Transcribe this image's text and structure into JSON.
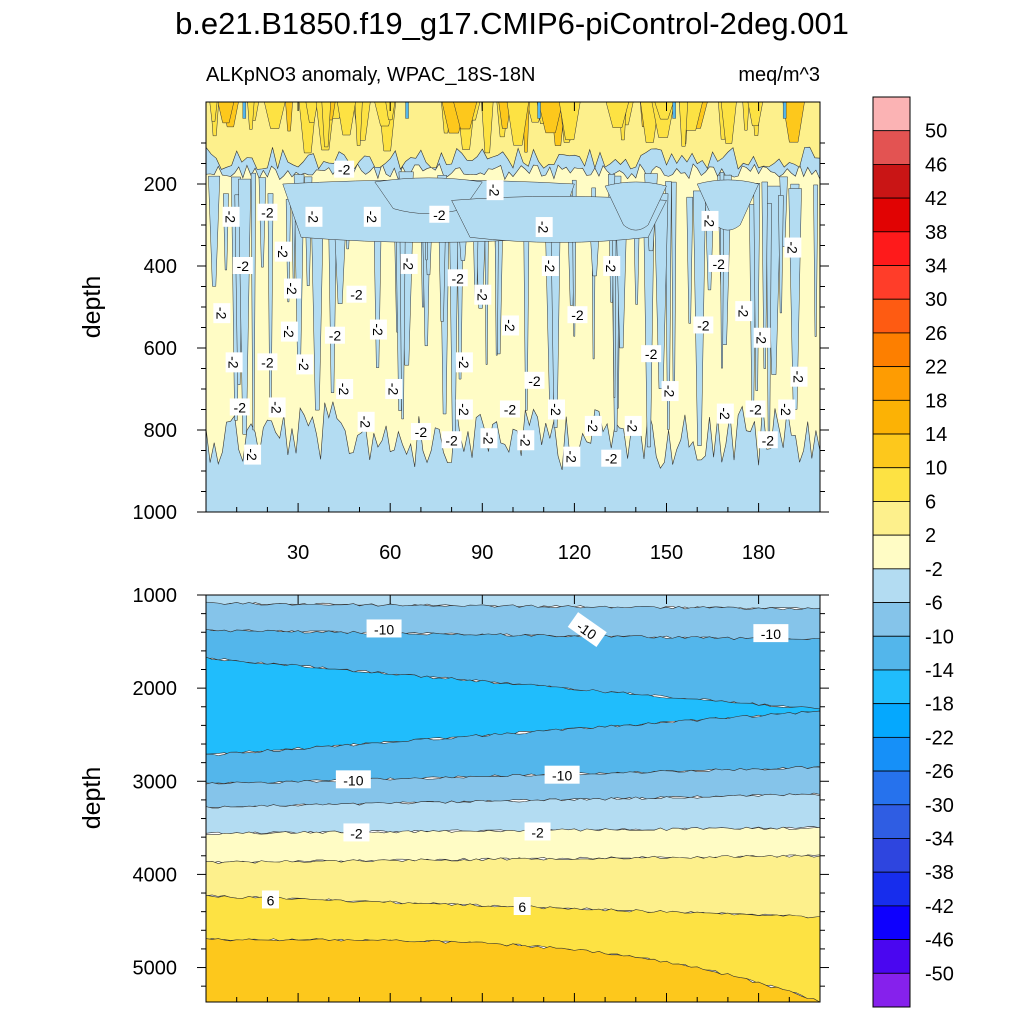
{
  "title": "b.e21.B1850.f19_g17.CMIP6-piControl-2deg.001",
  "subtitle_left": "ALKpNO3 anomaly, WPAC_18S-18N",
  "subtitle_right": "meq/m^3",
  "chart_data": [
    {
      "type": "heatmap",
      "panel": "upper",
      "ylabel": "depth",
      "xlabel": "",
      "xlim": [
        0,
        200
      ],
      "ylim": [
        1000,
        0
      ],
      "x_ticks": [
        30,
        60,
        90,
        120,
        150,
        180
      ],
      "y_ticks": [
        200,
        400,
        600,
        800,
        1000
      ],
      "regions": [
        {
          "label": "2 to 10",
          "depth_range": [
            0,
            150
          ]
        },
        {
          "label": "-2 to 2",
          "depth_range": [
            150,
            820
          ]
        },
        {
          "label": "-6 to -2",
          "depth_range": [
            820,
            1000
          ]
        }
      ],
      "contour_labels": [
        {
          "text": "-2",
          "x": 45,
          "y": 165
        },
        {
          "text": "-2",
          "x": 94,
          "y": 215
        },
        {
          "text": "-2",
          "x": 8,
          "y": 280
        },
        {
          "text": "-2",
          "x": 20,
          "y": 270
        },
        {
          "text": "-2",
          "x": 35,
          "y": 280
        },
        {
          "text": "-2",
          "x": 54,
          "y": 280
        },
        {
          "text": "-2",
          "x": 76,
          "y": 275
        },
        {
          "text": "-2",
          "x": 110,
          "y": 305
        },
        {
          "text": "-2",
          "x": 164,
          "y": 290
        },
        {
          "text": "-2",
          "x": 12,
          "y": 400
        },
        {
          "text": "-2",
          "x": 25,
          "y": 365
        },
        {
          "text": "-2",
          "x": 66,
          "y": 395
        },
        {
          "text": "-2",
          "x": 82,
          "y": 430
        },
        {
          "text": "-2",
          "x": 112,
          "y": 400
        },
        {
          "text": "-2",
          "x": 132,
          "y": 400
        },
        {
          "text": "-2",
          "x": 167,
          "y": 395
        },
        {
          "text": "-2",
          "x": 191,
          "y": 355
        },
        {
          "text": "-2",
          "x": 28,
          "y": 455
        },
        {
          "text": "-2",
          "x": 49,
          "y": 470
        },
        {
          "text": "-2",
          "x": 90,
          "y": 470
        },
        {
          "text": "-2",
          "x": 5,
          "y": 515
        },
        {
          "text": "-2",
          "x": 121,
          "y": 520
        },
        {
          "text": "-2",
          "x": 175,
          "y": 510
        },
        {
          "text": "-2",
          "x": 27,
          "y": 560
        },
        {
          "text": "-2",
          "x": 42,
          "y": 570
        },
        {
          "text": "-2",
          "x": 56,
          "y": 555
        },
        {
          "text": "-2",
          "x": 99,
          "y": 545
        },
        {
          "text": "-2",
          "x": 162,
          "y": 545
        },
        {
          "text": "-2",
          "x": 181,
          "y": 575
        },
        {
          "text": "-2",
          "x": 9,
          "y": 635
        },
        {
          "text": "-2",
          "x": 20,
          "y": 635
        },
        {
          "text": "-2",
          "x": 32,
          "y": 640
        },
        {
          "text": "-2",
          "x": 84,
          "y": 635
        },
        {
          "text": "-2",
          "x": 145,
          "y": 615
        },
        {
          "text": "-2",
          "x": 45,
          "y": 700
        },
        {
          "text": "-2",
          "x": 61,
          "y": 700
        },
        {
          "text": "-2",
          "x": 107,
          "y": 680
        },
        {
          "text": "-2",
          "x": 151,
          "y": 705
        },
        {
          "text": "-2",
          "x": 193,
          "y": 670
        },
        {
          "text": "-2",
          "x": 11,
          "y": 745
        },
        {
          "text": "-2",
          "x": 23,
          "y": 745
        },
        {
          "text": "-2",
          "x": 84,
          "y": 750
        },
        {
          "text": "-2",
          "x": 99,
          "y": 750
        },
        {
          "text": "-2",
          "x": 114,
          "y": 750
        },
        {
          "text": "-2",
          "x": 169,
          "y": 760
        },
        {
          "text": "-2",
          "x": 179,
          "y": 750
        },
        {
          "text": "-2",
          "x": 189,
          "y": 750
        },
        {
          "text": "-2",
          "x": 52,
          "y": 780
        },
        {
          "text": "-2",
          "x": 70,
          "y": 805
        },
        {
          "text": "-2",
          "x": 126,
          "y": 790
        },
        {
          "text": "-2",
          "x": 139,
          "y": 790
        },
        {
          "text": "-2",
          "x": 80,
          "y": 825
        },
        {
          "text": "-2",
          "x": 92,
          "y": 820
        },
        {
          "text": "-2",
          "x": 104,
          "y": 825
        },
        {
          "text": "-2",
          "x": 183,
          "y": 825
        },
        {
          "text": "-2",
          "x": 15,
          "y": 860
        },
        {
          "text": "-2",
          "x": 119,
          "y": 865
        },
        {
          "text": "-2",
          "x": 132,
          "y": 870
        }
      ]
    },
    {
      "type": "heatmap",
      "panel": "lower",
      "ylabel": "depth",
      "xlabel": "",
      "xlim": [
        0,
        200
      ],
      "ylim": [
        5370,
        1000
      ],
      "y_ticks": [
        1000,
        2000,
        3000,
        4000,
        5000
      ],
      "layers": [
        {
          "range": "-6 to -2",
          "top": [
            1000,
            1000
          ],
          "bottom": [
            1090,
            1150
          ]
        },
        {
          "range": "-10 to -6",
          "top": [
            1090,
            1150
          ],
          "bottom": [
            1380,
            1480
          ]
        },
        {
          "range": "-14 to -10",
          "top": [
            1380,
            1480
          ],
          "bottom": [
            1680,
            2230
          ]
        },
        {
          "range": "-18 to -14",
          "top": [
            1680,
            2230
          ],
          "bottom": [
            2720,
            2250
          ]
        },
        {
          "range": "-14 to -10",
          "top": [
            2720,
            2250
          ],
          "bottom": [
            3030,
            2850
          ]
        },
        {
          "range": "-10 to -6",
          "top": [
            3030,
            2850
          ],
          "bottom": [
            3280,
            3140
          ]
        },
        {
          "range": "-6 to -2",
          "top": [
            3280,
            3140
          ],
          "bottom": [
            3560,
            3500
          ]
        },
        {
          "range": "-2 to 2",
          "top": [
            3560,
            3500
          ],
          "bottom": [
            3870,
            3800
          ]
        },
        {
          "range": "2 to 6",
          "top": [
            3870,
            3800
          ],
          "bottom": [
            4230,
            4460
          ]
        },
        {
          "range": "6 to 10",
          "top": [
            4230,
            4460
          ],
          "bottom": [
            4700,
            5370
          ]
        },
        {
          "range": "10 to 14",
          "top": [
            4700,
            5370
          ],
          "bottom": [
            5370,
            5370
          ]
        }
      ],
      "contour_labels": [
        {
          "text": "-10",
          "x": 58,
          "y": 1370
        },
        {
          "text": "-10",
          "x": 124,
          "y": 1380
        },
        {
          "text": "-10",
          "x": 184,
          "y": 1420
        },
        {
          "text": "-10",
          "x": 48,
          "y": 2990
        },
        {
          "text": "-10",
          "x": 116,
          "y": 2940
        },
        {
          "text": "-2",
          "x": 49,
          "y": 3560
        },
        {
          "text": "-2",
          "x": 108,
          "y": 3550
        },
        {
          "text": "6",
          "x": 21,
          "y": 4280
        },
        {
          "text": "6",
          "x": 103,
          "y": 4350
        }
      ]
    }
  ],
  "colorbar": {
    "labels": [
      "50",
      "46",
      "42",
      "38",
      "34",
      "30",
      "26",
      "22",
      "18",
      "14",
      "10",
      "6",
      "2",
      "-2",
      "-6",
      "-10",
      "-14",
      "-18",
      "-22",
      "-26",
      "-30",
      "-34",
      "-38",
      "-42",
      "-46",
      "-50"
    ],
    "colors": [
      "#fbb3b4",
      "#e35352",
      "#c91515",
      "#e10303",
      "#fe1a1b",
      "#ff3d29",
      "#fe5b12",
      "#fd7f00",
      "#fe9c02",
      "#fcb205",
      "#fdc81c",
      "#fde243",
      "#fdf08c",
      "#fffcc5",
      "#b3dcf2",
      "#85c4ea",
      "#53b6eb",
      "#20bdfc",
      "#05a8fe",
      "#1690f8",
      "#2672ed",
      "#2f5de3",
      "#2e45df",
      "#172ded",
      "#0e00fe",
      "#4a06f0",
      "#8621ec"
    ]
  },
  "colors": {
    "band_2_6": "#fdf08c",
    "band_6_10": "#fde243",
    "band_10_14": "#fdc81c",
    "band_m2_2": "#fffcc5",
    "band_m6_m2": "#b3dcf2",
    "band_m10_m6": "#85c4ea",
    "band_m14_m10": "#53b6eb",
    "band_m18_m14": "#20bdfc",
    "band_m22_m18": "#05a8fe"
  }
}
